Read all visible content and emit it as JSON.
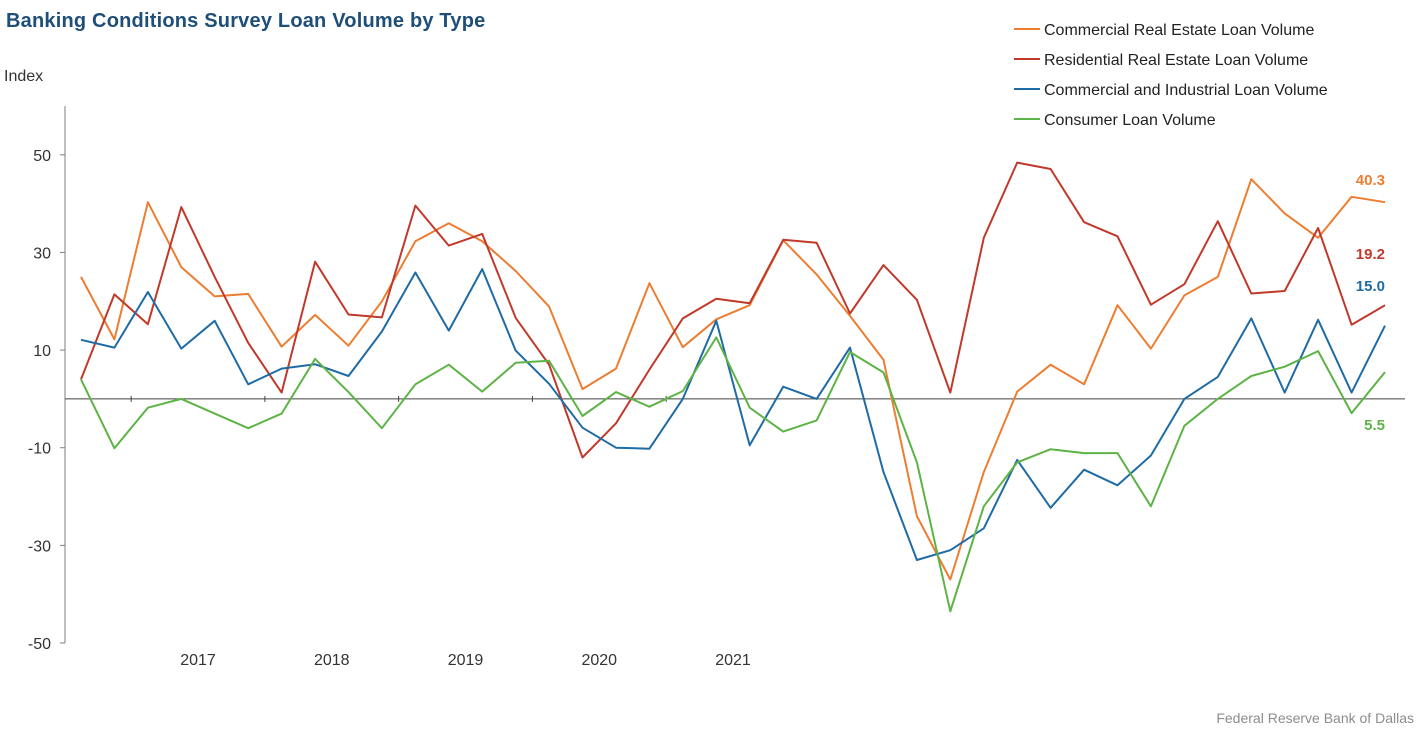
{
  "chart_data": {
    "type": "line",
    "title": "Banking Conditions Survey Loan Volume by Type",
    "ylabel": "Index",
    "source": "Federal Reserve Bank of Dallas",
    "ylim": [
      -50,
      60
    ],
    "yticks": [
      50,
      30,
      10,
      -10,
      -30,
      -50
    ],
    "x_start": "2016-07",
    "x_end": "2021-05",
    "xtick_labels": [
      "2017",
      "2018",
      "2019",
      "2020",
      "2021"
    ],
    "legend_position": "top-right",
    "series": [
      {
        "name": "Commercial Real Estate Loan Volume",
        "color": "#ed7d31",
        "end_label": "40.3",
        "values": [
          25,
          12.2,
          40.3,
          27,
          21,
          21.5,
          10.7,
          17.2,
          10.9,
          20,
          32.3,
          36,
          32.3,
          26.2,
          18.9,
          2,
          6.2,
          23.7,
          10.6,
          16.3,
          19.2,
          32.5,
          25.5,
          17,
          8,
          -24,
          -37,
          -15,
          1.5,
          7,
          3,
          19.2,
          10.3,
          21.2,
          25,
          45,
          38,
          33,
          41.4,
          40.3
        ]
      },
      {
        "name": "Residential Real Estate Loan Volume",
        "color": "#c0392b",
        "end_label": "19.2",
        "values": [
          4,
          21.4,
          15.3,
          39.3,
          25,
          11.5,
          1.3,
          28.1,
          17.3,
          16.7,
          39.6,
          31.4,
          33.8,
          16.6,
          7,
          -12,
          -5,
          6,
          16.5,
          20.5,
          19.6,
          32.6,
          32,
          17.5,
          27.4,
          20.3,
          1.3,
          33,
          48.4,
          47.1,
          36.2,
          33.3,
          19.3,
          23.5,
          36.4,
          21.6,
          22.1,
          35,
          15.2,
          19.2
        ]
      },
      {
        "name": "Commercial and Industrial Loan Volume",
        "color": "#1f6ba5",
        "end_label": "15.0",
        "values": [
          12.1,
          10.5,
          21.9,
          10.3,
          16,
          3,
          6.2,
          7.1,
          4.7,
          13.8,
          25.9,
          14,
          26.6,
          9.9,
          3.1,
          -5.9,
          -10,
          -10.2,
          0,
          16,
          -9.5,
          2.5,
          0,
          10.5,
          -15,
          -33,
          -31,
          -26.5,
          -12.5,
          -22.3,
          -14.5,
          -17.7,
          -11.6,
          0,
          4.5,
          16.5,
          1.3,
          16.2,
          1.3,
          15.0
        ]
      },
      {
        "name": "Consumer Loan Volume",
        "color": "#5db346",
        "end_label": "5.5",
        "values": [
          4,
          -10.1,
          -1.8,
          0,
          -3,
          -6,
          -3,
          8.2,
          1.4,
          -6,
          3,
          7,
          1.5,
          7.4,
          7.8,
          -3.5,
          1.4,
          -1.6,
          1.6,
          12.6,
          -1.8,
          -6.7,
          -4.4,
          9.6,
          5.4,
          -13,
          -43.5,
          -22,
          -13,
          -10.3,
          -11.1,
          -11.1,
          -22,
          -5.5,
          0,
          4.7,
          6.6,
          9.8,
          -2.9,
          5.5
        ]
      }
    ]
  }
}
